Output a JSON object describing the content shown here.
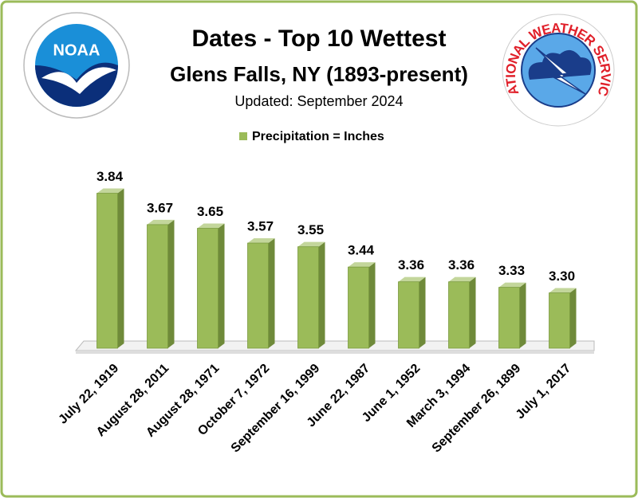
{
  "chart_data": {
    "type": "bar",
    "title": "Dates - Top 10 Wettest",
    "subtitle": "Glens Falls, NY (1893-present)",
    "updated": "Updated: September 2024",
    "categories": [
      "July 22, 1919",
      "August 28, 2011",
      "August 28, 1971",
      "October 7, 1972",
      "September 16, 1999",
      "June 22, 1987",
      "June 1, 1952",
      "March 3, 1994",
      "September 26, 1899",
      "July 1, 2017"
    ],
    "series": [
      {
        "name": "Precipitation = Inches",
        "color": "#9bbb59",
        "values": [
          3.84,
          3.67,
          3.65,
          3.57,
          3.55,
          3.44,
          3.36,
          3.36,
          3.33,
          3.3
        ],
        "value_labels": [
          "3.84",
          "3.67",
          "3.65",
          "3.57",
          "3.55",
          "3.44",
          "3.36",
          "3.36",
          "3.33",
          "3.30"
        ]
      }
    ],
    "ylim": [
      3,
      4
    ],
    "legend": "top"
  },
  "logos": {
    "noaa": "NOAA",
    "nws": "NATIONAL WEATHER SERVICE"
  }
}
